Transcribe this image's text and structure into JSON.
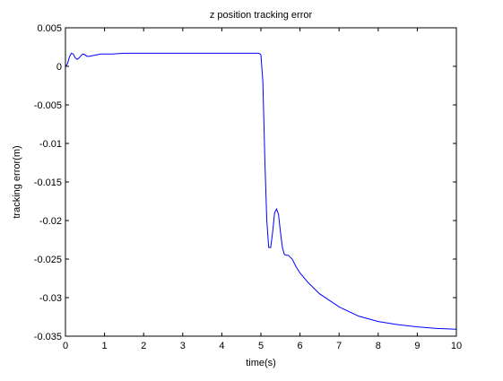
{
  "chart_data": {
    "type": "line",
    "title": "z position tracking error",
    "xlabel": "time(s)",
    "ylabel": "tracking error(m)",
    "xlim": [
      0,
      10
    ],
    "ylim": [
      -0.035,
      0.005
    ],
    "grid": false,
    "legend": "none",
    "x_ticks": [
      0,
      1,
      2,
      3,
      4,
      5,
      6,
      7,
      8,
      9,
      10
    ],
    "x_tick_labels": [
      "0",
      "1",
      "2",
      "3",
      "4",
      "5",
      "6",
      "7",
      "8",
      "9",
      "10"
    ],
    "y_ticks": [
      0.005,
      0,
      -0.005,
      -0.01,
      -0.015,
      -0.02,
      -0.025,
      -0.03,
      -0.035
    ],
    "y_tick_labels": [
      "0.005",
      "0",
      "-0.005",
      "-0.01",
      "-0.015",
      "-0.02",
      "-0.025",
      "-0.03",
      "-0.035"
    ],
    "series": [
      {
        "color": "#0000ff",
        "x": [
          0,
          0.05,
          0.1,
          0.15,
          0.2,
          0.25,
          0.3,
          0.35,
          0.4,
          0.45,
          0.5,
          0.55,
          0.6,
          0.7,
          0.8,
          0.9,
          1.0,
          1.2,
          1.5,
          2.0,
          3.0,
          4.0,
          4.8,
          4.95,
          5.0,
          5.05,
          5.1,
          5.15,
          5.2,
          5.25,
          5.3,
          5.35,
          5.4,
          5.45,
          5.5,
          5.55,
          5.6,
          5.65,
          5.7,
          5.8,
          5.9,
          6.0,
          6.2,
          6.5,
          7.0,
          7.5,
          8.0,
          8.5,
          9.0,
          9.5,
          10.0
        ],
        "y": [
          0,
          0.0003,
          0.0012,
          0.0017,
          0.0016,
          0.0011,
          0.0009,
          0.0011,
          0.0014,
          0.0016,
          0.0015,
          0.0013,
          0.0013,
          0.0014,
          0.0015,
          0.0016,
          0.0016,
          0.0016,
          0.0017,
          0.0017,
          0.0017,
          0.0017,
          0.0017,
          0.0017,
          0.0015,
          -0.002,
          -0.012,
          -0.02,
          -0.0235,
          -0.0235,
          -0.0215,
          -0.019,
          -0.0185,
          -0.0192,
          -0.0215,
          -0.0235,
          -0.0244,
          -0.0245,
          -0.0245,
          -0.025,
          -0.026,
          -0.0268,
          -0.028,
          -0.0295,
          -0.0312,
          -0.0324,
          -0.0331,
          -0.0335,
          -0.0338,
          -0.034,
          -0.0341
        ]
      }
    ]
  }
}
